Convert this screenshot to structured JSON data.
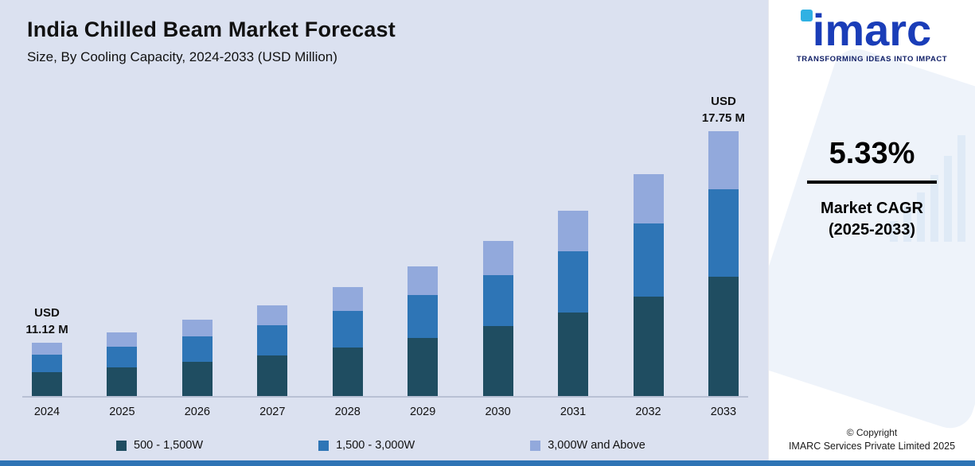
{
  "title": "India Chilled Beam Market Forecast",
  "subtitle": "Size, By Cooling Capacity, 2024-2033 (USD Million)",
  "chart_data": {
    "type": "bar",
    "stacked": true,
    "grid": false,
    "legend_position": "bottom",
    "categories": [
      "2024",
      "2025",
      "2026",
      "2027",
      "2028",
      "2029",
      "2030",
      "2031",
      "2032",
      "2033"
    ],
    "series": [
      {
        "name": "500 - 1,500W",
        "color": "#1f4d61",
        "values": [
          5.0,
          5.27,
          5.55,
          5.85,
          6.16,
          6.49,
          6.83,
          7.2,
          7.58,
          7.99
        ]
      },
      {
        "name": "1,500 - 3,000W",
        "color": "#2e75b6",
        "values": [
          3.67,
          3.86,
          4.07,
          4.29,
          4.52,
          4.76,
          5.01,
          5.28,
          5.56,
          5.86
        ]
      },
      {
        "name": "3,000W and Above",
        "color": "#92a9dc",
        "values": [
          2.45,
          2.58,
          2.72,
          2.86,
          3.01,
          3.17,
          3.34,
          3.52,
          3.71,
          3.9
        ]
      }
    ],
    "totals": [
      11.12,
      11.71,
      12.34,
      12.99,
      13.69,
      14.42,
      15.18,
      15.99,
      16.85,
      17.75
    ],
    "ylabel": "USD Million",
    "annotations": [
      {
        "category": "2024",
        "line1": "USD",
        "line2": "11.12 M"
      },
      {
        "category": "2033",
        "line1": "USD",
        "line2": "17.75 M"
      }
    ]
  },
  "sidebar": {
    "logo_text": "imarc",
    "tagline": "TRANSFORMING IDEAS INTO IMPACT",
    "cagr_value": "5.33%",
    "cagr_label_line1": "Market CAGR",
    "cagr_label_line2": "(2025-2033)",
    "copyright_line1": "© Copyright",
    "copyright_line2": "IMARC Services Private Limited 2025"
  },
  "colors": {
    "chart_background": "#dbe1f0",
    "panel_background": "#ffffff",
    "axis_line": "#b8c0d4",
    "bottom_strip": "#2e74b5",
    "logo_blue": "#1a3db8",
    "logo_dot": "#2fb1e3"
  }
}
